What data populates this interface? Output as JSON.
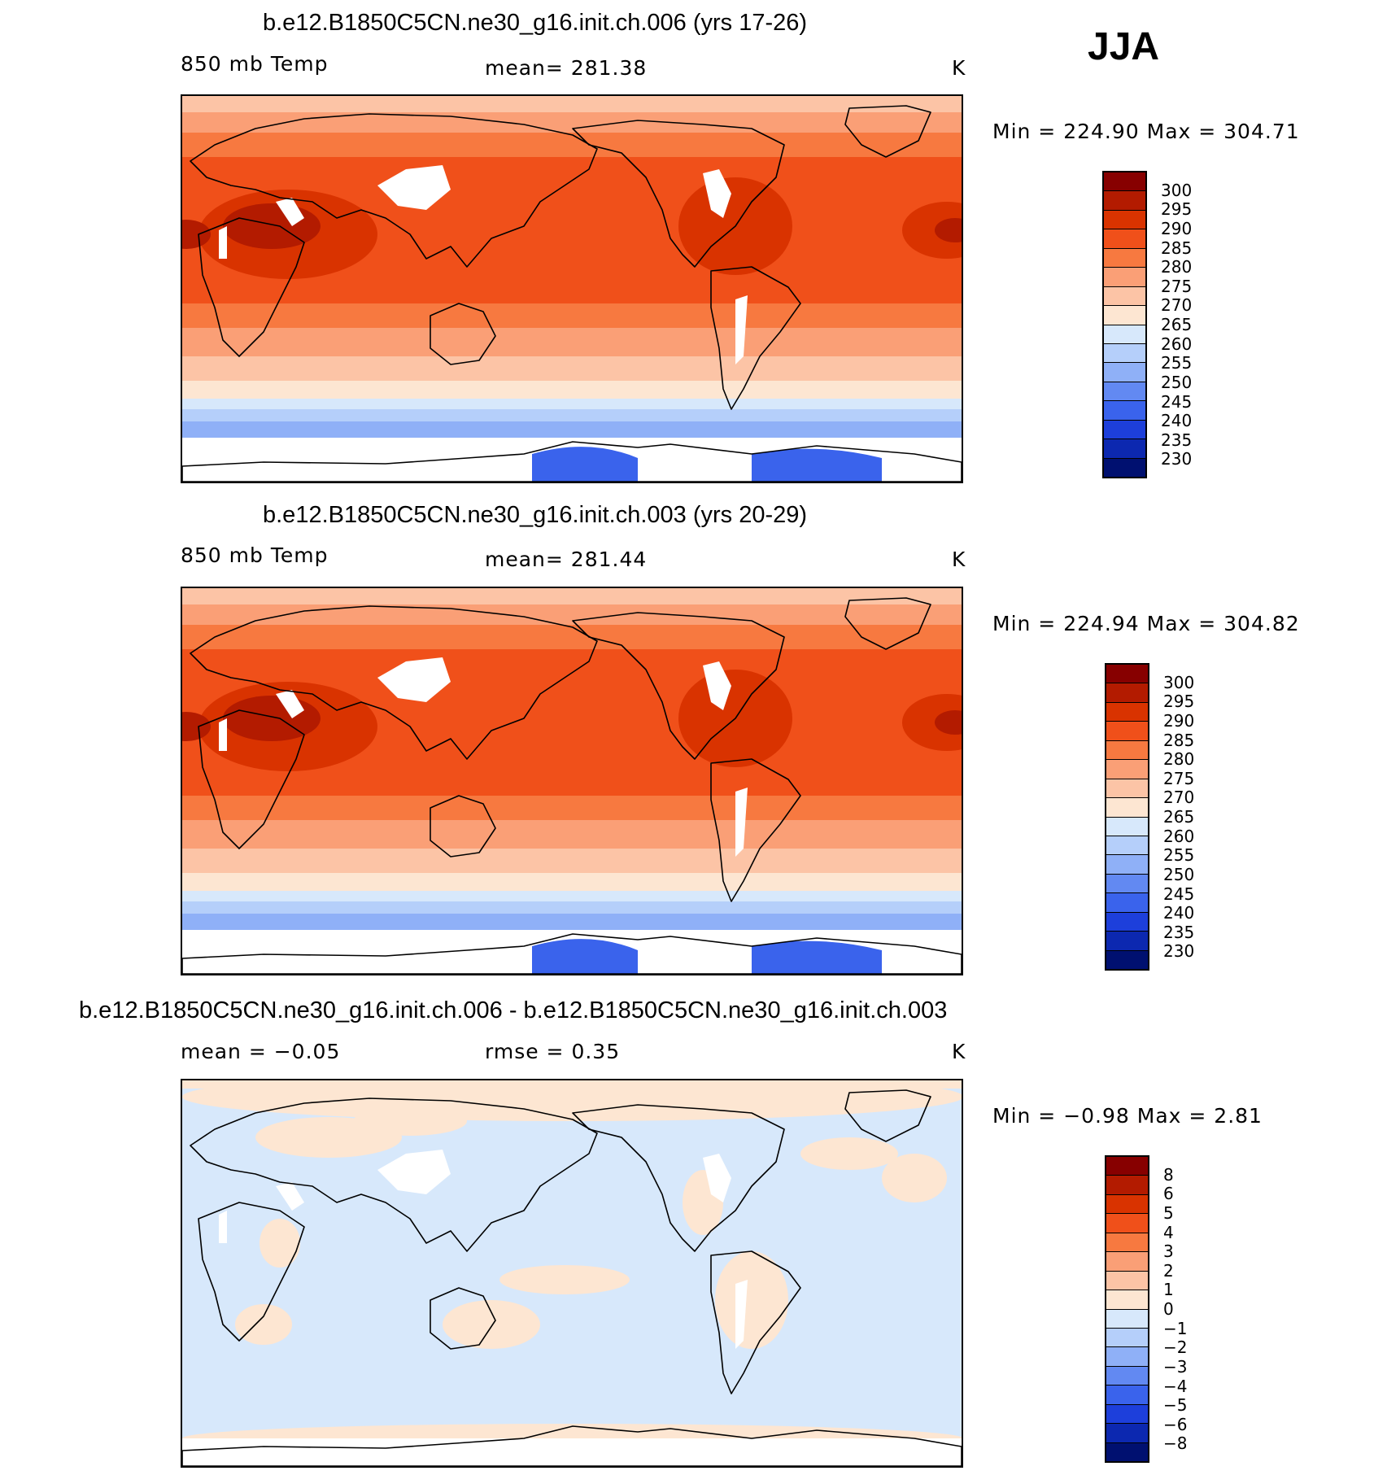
{
  "season": "JJA",
  "panels": [
    {
      "title": "b.e12.B1850C5CN.ne30_g16.init.ch.006 (yrs 17-26)",
      "left_label": "850 mb Temp",
      "center_label": "mean= 281.38",
      "units": "K",
      "minmax": "Min = 224.90 Max = 304.71",
      "field": "abs"
    },
    {
      "title": "b.e12.B1850C5CN.ne30_g16.init.ch.003 (yrs 20-29)",
      "left_label": "850 mb Temp",
      "center_label": "mean= 281.44",
      "units": "K",
      "minmax": "Min = 224.94 Max = 304.82",
      "field": "abs"
    },
    {
      "title": "b.e12.B1850C5CN.ne30_g16.init.ch.006 - b.e12.B1850C5CN.ne30_g16.init.ch.003",
      "left_label": "mean =   −0.05",
      "center_label": "rmse =    0.35",
      "units": "K",
      "minmax": "Min =  −0.98 Max =    2.81",
      "field": "diff"
    }
  ],
  "colorbar_abs": {
    "labels": [
      "300",
      "295",
      "290",
      "285",
      "280",
      "275",
      "270",
      "265",
      "260",
      "255",
      "250",
      "245",
      "240",
      "235",
      "230"
    ],
    "colors": [
      "#870000",
      "#b31b00",
      "#d93300",
      "#f0501a",
      "#f77940",
      "#fa9f76",
      "#fcc4a6",
      "#fde6d2",
      "#d7e8fb",
      "#b5cffa",
      "#8fb0f7",
      "#6289f2",
      "#3a63ec",
      "#1d3fdb",
      "#0c28b0",
      "#001070"
    ]
  },
  "colorbar_diff": {
    "labels": [
      "8",
      "6",
      "5",
      "4",
      "3",
      "2",
      "1",
      "0",
      "−1",
      "−2",
      "−3",
      "−4",
      "−5",
      "−6",
      "−8"
    ],
    "colors": [
      "#870000",
      "#b31b00",
      "#d93300",
      "#f0501a",
      "#f77940",
      "#fa9f76",
      "#fcc4a6",
      "#fde6d2",
      "#d7e8fb",
      "#b5cffa",
      "#8fb0f7",
      "#6289f2",
      "#3a63ec",
      "#1d3fdb",
      "#0c28b0",
      "#001070"
    ]
  }
}
